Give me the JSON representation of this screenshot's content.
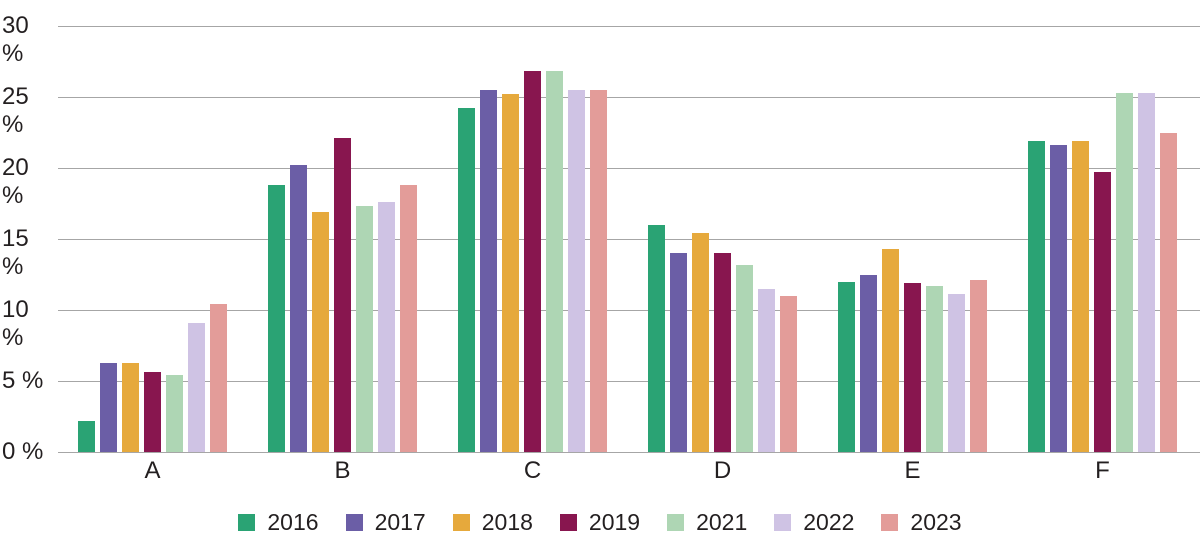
{
  "chart_data": {
    "type": "bar",
    "title": "",
    "categories": [
      "A",
      "B",
      "C",
      "D",
      "E",
      "F"
    ],
    "series": [
      {
        "name": "2016",
        "color": "#2aa374",
        "values": [
          2.2,
          18.8,
          24.2,
          16.0,
          12.0,
          21.9
        ]
      },
      {
        "name": "2017",
        "color": "#6b5ea6",
        "values": [
          6.3,
          20.2,
          25.5,
          14.0,
          12.5,
          21.6
        ]
      },
      {
        "name": "2018",
        "color": "#e6a93c",
        "values": [
          6.3,
          16.9,
          25.2,
          15.4,
          14.3,
          21.9
        ]
      },
      {
        "name": "2019",
        "color": "#88164f",
        "values": [
          5.6,
          22.1,
          26.8,
          14.0,
          11.9,
          19.7
        ]
      },
      {
        "name": "2021",
        "color": "#aed6b4",
        "values": [
          5.4,
          17.3,
          26.8,
          13.2,
          11.7,
          25.3
        ]
      },
      {
        "name": "2022",
        "color": "#cfc3e4",
        "values": [
          9.1,
          17.6,
          25.5,
          11.5,
          11.1,
          25.3
        ]
      },
      {
        "name": "2023",
        "color": "#e39c99",
        "values": [
          10.4,
          18.8,
          25.5,
          11.0,
          12.1,
          22.5
        ]
      }
    ],
    "xlabel": "",
    "ylabel": "",
    "ylim": [
      0,
      30
    ],
    "y_axis": {
      "min": 0,
      "max": 30,
      "step": 5,
      "tick_labels": [
        "0 %",
        "5 %",
        "10 %",
        "15 %",
        "20 %",
        "25 %",
        "30 %"
      ]
    },
    "grid": true,
    "legend": {
      "position": "bottom",
      "entries": [
        "2016",
        "2017",
        "2018",
        "2019",
        "2021",
        "2022",
        "2023"
      ]
    }
  },
  "style": {
    "gridline_color": "#a6a6a6",
    "text_color": "#231f20",
    "background": "#ffffff"
  }
}
